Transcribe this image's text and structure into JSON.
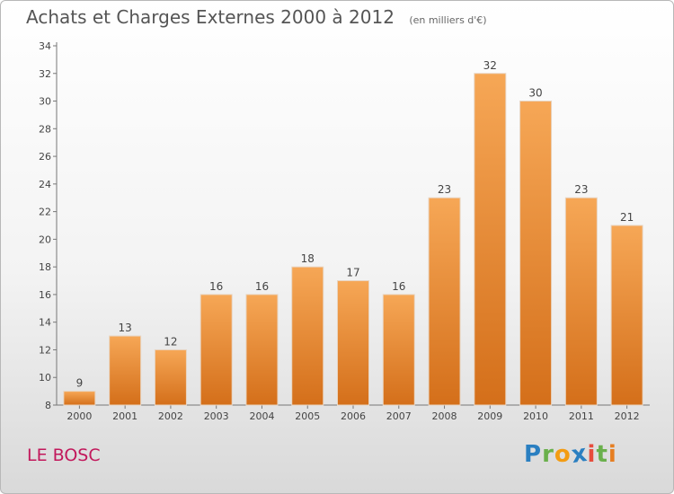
{
  "chart_data": {
    "type": "bar",
    "title": "Achats et Charges Externes 2000 à 2012",
    "subtitle": "(en milliers d'€)",
    "categories": [
      "2000",
      "2001",
      "2002",
      "2003",
      "2004",
      "2005",
      "2006",
      "2007",
      "2008",
      "2009",
      "2010",
      "2011",
      "2012"
    ],
    "values": [
      9,
      13,
      12,
      16,
      16,
      18,
      17,
      16,
      23,
      32,
      30,
      23,
      21
    ],
    "ylim": [
      8,
      34
    ],
    "yticks": [
      8,
      10,
      12,
      14,
      16,
      18,
      20,
      22,
      24,
      26,
      28,
      30,
      32,
      34
    ],
    "xlabel": "",
    "ylabel": "",
    "grid": false
  },
  "commune": "LE BOSC",
  "logo": {
    "letters": [
      "P",
      "r",
      "o",
      "x",
      "i",
      "t",
      "i"
    ],
    "colors": [
      "#2a7fc1",
      "#6ab04c",
      "#f39c12",
      "#2a7fc1",
      "#e74c3c",
      "#6ab04c",
      "#e67e22"
    ]
  },
  "colors": {
    "bar_top": "#f6a756",
    "bar_bottom": "#d46f1a",
    "commune": "#c2185b"
  }
}
